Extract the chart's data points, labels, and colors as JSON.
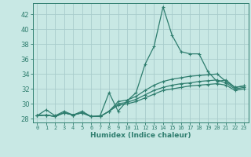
{
  "xlabel": "Humidex (Indice chaleur)",
  "bg_color": "#c8e8e4",
  "grid_color": "#a8cccc",
  "line_color": "#2e7d6e",
  "xlim": [
    -0.5,
    23.5
  ],
  "ylim": [
    27.5,
    43.5
  ],
  "xticks": [
    0,
    1,
    2,
    3,
    4,
    5,
    6,
    7,
    8,
    9,
    10,
    11,
    12,
    13,
    14,
    15,
    16,
    17,
    18,
    19,
    20,
    21,
    22,
    23
  ],
  "yticks": [
    28,
    30,
    32,
    34,
    36,
    38,
    40,
    42
  ],
  "lines": [
    {
      "x": [
        0,
        1,
        2,
        3,
        4,
        5,
        6,
        7,
        8,
        9,
        10,
        11,
        12,
        13,
        14,
        15,
        16,
        17,
        18,
        19,
        20,
        21,
        22,
        23
      ],
      "y": [
        28.4,
        29.2,
        28.4,
        29.0,
        28.5,
        29.0,
        28.3,
        28.4,
        31.5,
        29.0,
        30.4,
        31.5,
        35.3,
        37.7,
        43.0,
        39.2,
        37.0,
        36.7,
        36.7,
        34.3,
        33.0,
        33.2,
        32.2,
        32.4
      ]
    },
    {
      "x": [
        0,
        1,
        2,
        3,
        4,
        5,
        6,
        7,
        8,
        9,
        10,
        11,
        12,
        13,
        14,
        15,
        16,
        17,
        18,
        19,
        20,
        21,
        22,
        23
      ],
      "y": [
        28.4,
        28.5,
        28.3,
        28.8,
        28.5,
        28.8,
        28.3,
        28.3,
        29.0,
        30.3,
        30.5,
        31.0,
        31.8,
        32.5,
        33.0,
        33.3,
        33.5,
        33.7,
        33.8,
        33.9,
        34.0,
        33.0,
        32.2,
        32.4
      ]
    },
    {
      "x": [
        0,
        1,
        2,
        3,
        4,
        5,
        6,
        7,
        8,
        9,
        10,
        11,
        12,
        13,
        14,
        15,
        16,
        17,
        18,
        19,
        20,
        21,
        22,
        23
      ],
      "y": [
        28.4,
        28.5,
        28.3,
        28.8,
        28.5,
        28.8,
        28.3,
        28.3,
        29.0,
        30.0,
        30.2,
        30.6,
        31.2,
        31.8,
        32.2,
        32.5,
        32.7,
        32.8,
        33.0,
        33.1,
        33.2,
        32.8,
        32.0,
        32.2
      ]
    },
    {
      "x": [
        0,
        1,
        2,
        3,
        4,
        5,
        6,
        7,
        8,
        9,
        10,
        11,
        12,
        13,
        14,
        15,
        16,
        17,
        18,
        19,
        20,
        21,
        22,
        23
      ],
      "y": [
        28.4,
        28.5,
        28.3,
        28.8,
        28.5,
        28.8,
        28.3,
        28.3,
        29.0,
        29.8,
        30.0,
        30.3,
        30.8,
        31.3,
        31.8,
        32.0,
        32.2,
        32.4,
        32.5,
        32.6,
        32.7,
        32.5,
        31.8,
        32.0
      ]
    }
  ]
}
